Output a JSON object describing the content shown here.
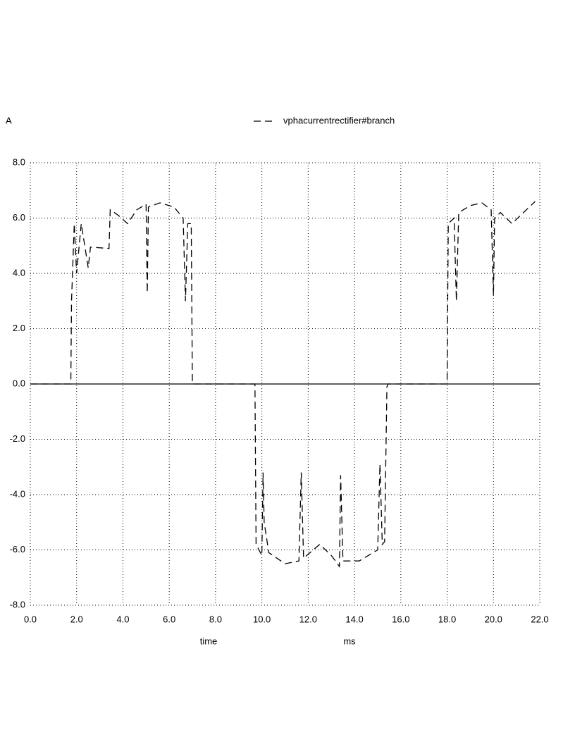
{
  "chart_data": {
    "type": "line",
    "y_unit_label": "A",
    "x_label": "time",
    "x_unit_label": "ms",
    "grid": true,
    "xlim": [
      0,
      22
    ],
    "ylim": [
      -8,
      8
    ],
    "xticks": [
      {
        "value": 0,
        "label": "0.0"
      },
      {
        "value": 2,
        "label": "2.0"
      },
      {
        "value": 4,
        "label": "4.0"
      },
      {
        "value": 6,
        "label": "6.0"
      },
      {
        "value": 8,
        "label": "8.0"
      },
      {
        "value": 10,
        "label": "10.0"
      },
      {
        "value": 12,
        "label": "12.0"
      },
      {
        "value": 14,
        "label": "14.0"
      },
      {
        "value": 16,
        "label": "16.0"
      },
      {
        "value": 18,
        "label": "18.0"
      },
      {
        "value": 20,
        "label": "20.0"
      },
      {
        "value": 22,
        "label": "22.0"
      }
    ],
    "yticks": [
      {
        "value": -8,
        "label": "-8.0"
      },
      {
        "value": -6,
        "label": "-6.0"
      },
      {
        "value": -4,
        "label": "-4.0"
      },
      {
        "value": -2,
        "label": "-2.0"
      },
      {
        "value": 0,
        "label": "0.0"
      },
      {
        "value": 2,
        "label": "2.0"
      },
      {
        "value": 4,
        "label": "4.0"
      },
      {
        "value": 6,
        "label": "6.0"
      },
      {
        "value": 8,
        "label": "8.0"
      }
    ],
    "x": [
      0,
      1.75,
      1.78,
      1.8,
      1.9,
      2.0,
      2.2,
      2.5,
      2.6,
      3.4,
      3.45,
      3.8,
      4.2,
      4.6,
      5.0,
      5.05,
      5.1,
      5.6,
      6.2,
      6.6,
      6.7,
      6.8,
      6.95,
      7.0,
      9.7,
      9.75,
      10.0,
      10.05,
      10.1,
      10.3,
      11.0,
      11.6,
      11.7,
      11.8,
      12.5,
      13.0,
      13.35,
      13.4,
      13.5,
      14.2,
      14.8,
      15.0,
      15.1,
      15.2,
      15.3,
      15.4,
      15.45,
      18.0,
      18.05,
      18.3,
      18.4,
      18.5,
      19.0,
      19.5,
      19.9,
      20.0,
      20.05,
      20.3,
      20.8,
      21.3,
      21.8
    ],
    "series": [
      {
        "name": "vphacurrentrectifier#branch",
        "color": "#000000",
        "dash": "dashed",
        "values": [
          0,
          0,
          3.0,
          3.5,
          5.8,
          4.0,
          5.8,
          4.2,
          4.95,
          4.9,
          6.3,
          6.1,
          5.8,
          6.3,
          6.5,
          3.3,
          6.4,
          6.55,
          6.4,
          6.0,
          3.0,
          5.8,
          5.8,
          0,
          0,
          -5.8,
          -6.2,
          -3.2,
          -5.0,
          -6.1,
          -6.5,
          -6.4,
          -3.2,
          -6.3,
          -5.8,
          -6.2,
          -6.6,
          -3.3,
          -6.4,
          -6.4,
          -6.1,
          -6.0,
          -2.9,
          -5.8,
          -5.7,
          -0.1,
          0,
          0,
          5.8,
          6.0,
          3.0,
          6.2,
          6.45,
          6.55,
          6.3,
          3.2,
          6.0,
          6.2,
          5.8,
          6.2,
          6.6
        ]
      }
    ]
  }
}
